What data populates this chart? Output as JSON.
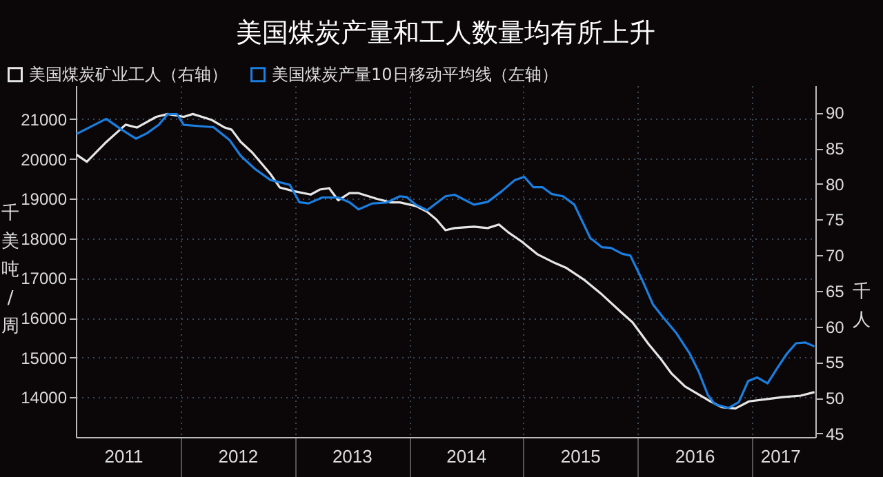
{
  "chart_data": {
    "type": "line",
    "title": "美国煤炭产量和工人数量均有所上升",
    "ylabel": "千美吨/周",
    "y2label": "千人",
    "xlim": [
      "2011-01-31",
      "2017-07-23"
    ],
    "xticks": [
      {
        "value": "2011-07-01",
        "label": "2011"
      },
      {
        "value": "2012-01-01",
        "label": null
      },
      {
        "value": "2012-07-01",
        "label": "2012"
      },
      {
        "value": "2013-01-01",
        "label": null
      },
      {
        "value": "2013-07-01",
        "label": "2013"
      },
      {
        "value": "2014-01-01",
        "label": null
      },
      {
        "value": "2014-07-01",
        "label": "2014"
      },
      {
        "value": "2015-01-01",
        "label": null
      },
      {
        "value": "2015-07-01",
        "label": "2015"
      },
      {
        "value": "2016-01-01",
        "label": null
      },
      {
        "value": "2016-07-01",
        "label": "2016"
      },
      {
        "value": "2017-01-01",
        "label": null
      },
      {
        "value": "2017-04-01",
        "label": "2017"
      }
    ],
    "ylim": [
      13000,
      21850
    ],
    "yticks": [
      14000,
      15000,
      16000,
      17000,
      18000,
      19000,
      20000,
      21000
    ],
    "y2lim": [
      44.5,
      93.8
    ],
    "y2ticks": [
      45,
      50,
      55,
      60,
      65,
      70,
      75,
      80,
      85,
      90
    ],
    "grid": true,
    "legend": "top left",
    "series": [
      {
        "name": "美国煤炭矿业工人（右轴）",
        "color": "#e6e6e6",
        "axis": "y2",
        "x": [
          "2011-02-02",
          "2011-03-07",
          "2011-05-04",
          "2011-07-09",
          "2011-08-14",
          "2011-10-15",
          "2011-11-21",
          "2012-01-11",
          "2012-02-09",
          "2012-04-08",
          "2012-05-21",
          "2012-06-12",
          "2012-07-11",
          "2012-08-17",
          "2012-10-14",
          "2012-11-13",
          "2012-12-26",
          "2013-02-20",
          "2013-03-21",
          "2013-04-20",
          "2013-05-19",
          "2013-06-24",
          "2013-07-23",
          "2013-09-20",
          "2013-11-03",
          "2013-12-02",
          "2014-01-22",
          "2014-02-27",
          "2014-03-29",
          "2014-04-27",
          "2014-05-26",
          "2014-07-27",
          "2014-09-09",
          "2014-10-15",
          "2014-11-14",
          "2014-12-27",
          "2015-02-16",
          "2015-04-12",
          "2015-05-19",
          "2015-07-16",
          "2015-09-09",
          "2015-11-10",
          "2015-12-16",
          "2016-02-06",
          "2016-03-13",
          "2016-04-19",
          "2016-06-01",
          "2016-08-13",
          "2016-09-26",
          "2016-11-09",
          "2016-12-23",
          "2017-02-16",
          "2017-04-09",
          "2017-06-06",
          "2017-07-20"
        ],
        "values": [
          84.1,
          83.1,
          85.7,
          88.3,
          87.9,
          89.4,
          89.8,
          89.4,
          89.8,
          89.0,
          87.9,
          87.6,
          85.9,
          84.4,
          81.4,
          79.5,
          79.0,
          78.5,
          79.2,
          79.4,
          77.7,
          78.7,
          78.7,
          77.9,
          77.4,
          77.4,
          76.9,
          76.1,
          75.0,
          73.5,
          73.8,
          74.0,
          73.8,
          74.3,
          73.2,
          71.9,
          70.1,
          68.9,
          68.2,
          66.5,
          64.5,
          62.0,
          60.6,
          57.5,
          55.6,
          53.4,
          51.6,
          49.7,
          48.7,
          48.5,
          49.5,
          49.8,
          50.1,
          50.3,
          50.8
        ]
      },
      {
        "name": "美国煤炭产量10日移动平均线（左轴）",
        "color": "#1a7fe0",
        "x": [
          "2011-02-02",
          "2011-05-08",
          "2011-06-24",
          "2011-08-11",
          "2011-09-16",
          "2011-10-23",
          "2011-11-21",
          "2011-12-20",
          "2012-01-11",
          "2012-02-24",
          "2012-04-15",
          "2012-06-05",
          "2012-07-11",
          "2012-08-24",
          "2012-10-14",
          "2012-12-15",
          "2013-01-15",
          "2013-02-13",
          "2013-03-29",
          "2013-05-19",
          "2013-06-24",
          "2013-07-23",
          "2013-09-05",
          "2013-10-20",
          "2013-12-02",
          "2013-12-24",
          "2014-01-22",
          "2014-02-27",
          "2014-04-27",
          "2014-05-26",
          "2014-07-27",
          "2014-09-09",
          "2014-10-23",
          "2014-12-05",
          "2015-01-04",
          "2015-02-02",
          "2015-03-03",
          "2015-04-01",
          "2015-05-08",
          "2015-06-13",
          "2015-08-03",
          "2015-09-09",
          "2015-10-08",
          "2015-11-14",
          "2015-12-09",
          "2016-01-15",
          "2016-02-20",
          "2016-03-20",
          "2016-05-03",
          "2016-06-16",
          "2016-07-15",
          "2016-08-13",
          "2016-09-04",
          "2016-10-18",
          "2016-11-20",
          "2016-12-20",
          "2017-01-18",
          "2017-02-20",
          "2017-03-25",
          "2017-04-23",
          "2017-05-22",
          "2017-06-21",
          "2017-07-20"
        ],
        "values": [
          20630,
          21010,
          20750,
          20510,
          20650,
          20860,
          21130,
          21130,
          20860,
          20830,
          20800,
          20480,
          20080,
          19760,
          19470,
          19350,
          18910,
          18880,
          19030,
          19030,
          18910,
          18730,
          18880,
          18900,
          19060,
          19040,
          18850,
          18710,
          19060,
          19100,
          18850,
          18920,
          19180,
          19470,
          19550,
          19290,
          19290,
          19120,
          19060,
          18850,
          18010,
          17780,
          17760,
          17610,
          17570,
          16970,
          16330,
          16040,
          15630,
          15100,
          14640,
          14060,
          13830,
          13730,
          13880,
          14410,
          14500,
          14350,
          14760,
          15100,
          15360,
          15380,
          15280
        ]
      }
    ]
  }
}
